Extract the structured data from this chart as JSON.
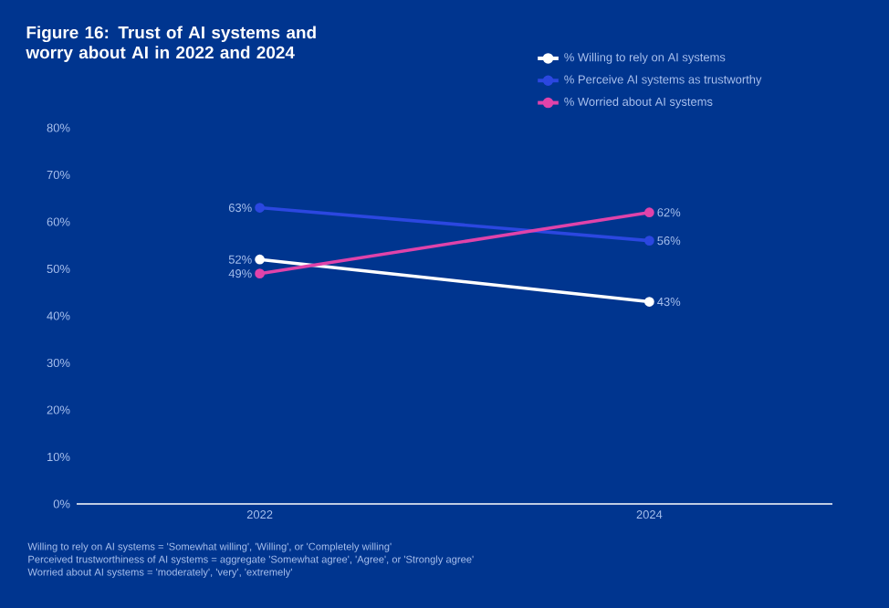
{
  "chart_data": {
    "type": "line",
    "title": "Figure 16: Trust of AI systems and worry about AI in 2022 and 2024",
    "categories": [
      "2022",
      "2024"
    ],
    "series": [
      {
        "name": "% Willing to rely on AI systems",
        "color": "#ffffff",
        "values": [
          52,
          43
        ],
        "value_labels": [
          "52%",
          "43%"
        ]
      },
      {
        "name": "% Perceive AI systems as trustworthy",
        "color": "#2b47e0",
        "values": [
          63,
          56
        ],
        "value_labels": [
          "63%",
          "56%"
        ]
      },
      {
        "name": "% Worried about AI systems",
        "color": "#e043aa",
        "values": [
          49,
          62
        ],
        "value_labels": [
          "49%",
          "62%"
        ]
      }
    ],
    "ylim": [
      0,
      80
    ],
    "yticks": [
      {
        "value": 0,
        "label": "0%"
      },
      {
        "value": 10,
        "label": "10%"
      },
      {
        "value": 20,
        "label": "20%"
      },
      {
        "value": 30,
        "label": "30%"
      },
      {
        "value": 40,
        "label": "40%"
      },
      {
        "value": 50,
        "label": "50%"
      },
      {
        "value": 60,
        "label": "60%"
      },
      {
        "value": 70,
        "label": "70%"
      },
      {
        "value": 80,
        "label": "80%"
      }
    ],
    "legend": "top right",
    "marker": "circle",
    "annotations": [
      "Willing to rely on AI systems = 'Somewhat willing', 'Willing', or 'Completely willing'",
      "Perceived trustworthiness of AI systems = aggregate 'Somewhat agree', 'Agree', or 'Strongly agree'",
      "Worried about AI systems = 'moderately', 'very', 'extremely'"
    ]
  }
}
